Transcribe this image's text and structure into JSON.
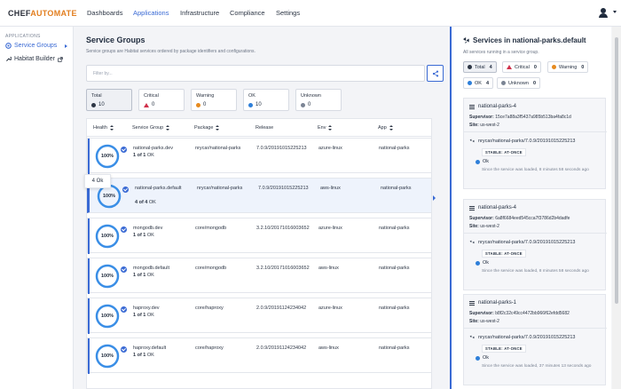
{
  "brand": {
    "part1": "CHEF",
    "part2": "AUTOMATE"
  },
  "nav": [
    {
      "label": "Dashboards",
      "active": false
    },
    {
      "label": "Applications",
      "active": true
    },
    {
      "label": "Infrastructure",
      "active": false
    },
    {
      "label": "Compliance",
      "active": false
    },
    {
      "label": "Settings",
      "active": false
    }
  ],
  "sidebar": {
    "section": "APPLICATIONS",
    "items": [
      {
        "label": "Service Groups",
        "active": true
      },
      {
        "label": "Habitat Builder",
        "active": false
      }
    ]
  },
  "main": {
    "title": "Service Groups",
    "subtitle": "Service groups are Habitat services ordered by package identifiers and configurations.",
    "search_placeholder": "Filter by...",
    "status_cards": [
      {
        "label": "Total",
        "count": "10",
        "icon": "total-icon"
      },
      {
        "label": "Critical",
        "count": "0",
        "icon": "critical-icon"
      },
      {
        "label": "Warning",
        "count": "0",
        "icon": "warning-icon"
      },
      {
        "label": "OK",
        "count": "10",
        "icon": "ok-icon"
      },
      {
        "label": "Unknown",
        "count": "0",
        "icon": "unknown-icon"
      }
    ],
    "columns": [
      "Health",
      "Service Group",
      "Package",
      "Release",
      "Env",
      "App"
    ],
    "tooltip": "4 Ok",
    "rows": [
      {
        "health": "100%",
        "name": "national-parks.dev",
        "count": "1 of 1",
        "status": "OK",
        "package": "nrycar/national-parks",
        "release": "7.0.9/20191015225213",
        "env": "azure-linux",
        "app": "national-parks"
      },
      {
        "health": "100%",
        "name": "national-parks.default",
        "count": "4 of 4",
        "status": "OK",
        "package": "nrycar/national-parks",
        "release": "7.0.9/20191015225213",
        "env": "aws-linux",
        "app": "national-parks"
      },
      {
        "health": "100%",
        "name": "mongodb.dev",
        "count": "1 of 1",
        "status": "OK",
        "package": "core/mongodb",
        "release": "3.2.10/20171016003652",
        "env": "azure-linux",
        "app": "national-parks"
      },
      {
        "health": "100%",
        "name": "mongodb.default",
        "count": "1 of 1",
        "status": "OK",
        "package": "core/mongodb",
        "release": "3.2.10/20171016003652",
        "env": "aws-linux",
        "app": "national-parks"
      },
      {
        "health": "100%",
        "name": "haproxy.dev",
        "count": "1 of 1",
        "status": "OK",
        "package": "core/haproxy",
        "release": "2.0.9/20191124234042",
        "env": "azure-linux",
        "app": "national-parks"
      },
      {
        "health": "100%",
        "name": "haproxy.default",
        "count": "1 of 1",
        "status": "OK",
        "package": "core/haproxy",
        "release": "2.0.9/20191124234042",
        "env": "aws-linux",
        "app": "national-parks"
      }
    ]
  },
  "panel": {
    "title": "Services in national-parks.default",
    "subtitle": "All services running in a service group.",
    "filters": [
      {
        "label": "Total",
        "count": "4"
      },
      {
        "label": "Critical",
        "count": "0"
      },
      {
        "label": "Warning",
        "count": "0"
      },
      {
        "label": "OK",
        "count": "4"
      },
      {
        "label": "Unknown",
        "count": "0"
      }
    ],
    "supervisor_label": "Supervisor:",
    "site_label": "Site:",
    "services": [
      {
        "name": "national-parks-4",
        "supervisor": "15ce7a88a3f5437a985b513ba4fa8c1d",
        "site": "us-west-2",
        "package": "nrycar/national-parks/7.0.9/20191015225213",
        "strategy": "STABLE: AT-ONCE",
        "health": "Ok",
        "message": "Since the service was loaded, 8 minutes 58 seconds ago"
      },
      {
        "name": "national-parks-4",
        "supervisor": "6a8f6684eed545cca7f3786d2b4dadfe",
        "site": "us-west-2",
        "package": "nrycar/national-parks/7.0.9/20191015225213",
        "strategy": "STABLE: AT-ONCE",
        "health": "Ok",
        "message": "Since the service was loaded, 8 minutes 58 seconds ago"
      },
      {
        "name": "national-parks-1",
        "supervisor": "b8f2c32c49cc4472bb966f62efdd5682",
        "site": "us-west-2",
        "package": "nrycar/national-parks/7.0.9/20191015225213",
        "strategy": "STABLE: AT-ONCE",
        "health": "Ok",
        "message": "Since the service was loaded, 37 minutes 13 seconds ago"
      }
    ]
  }
}
